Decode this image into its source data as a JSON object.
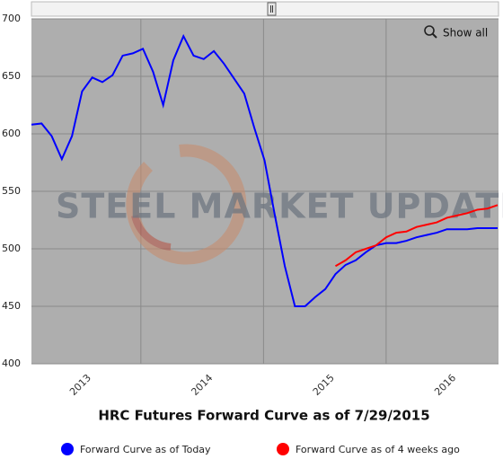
{
  "chart_data": {
    "type": "line",
    "title": "HRC Futures Forward Curve as of 7/29/2015",
    "watermark": "STEEL MARKET UPDATE",
    "button": "Show all",
    "categories": [
      null,
      null,
      null,
      null,
      null,
      null,
      null,
      null,
      null,
      null,
      null,
      null,
      null,
      null,
      null,
      null,
      null,
      null,
      null,
      null,
      null,
      null,
      null,
      null,
      null,
      null,
      null,
      null,
      null,
      null,
      null,
      null,
      null,
      null,
      null,
      null,
      null,
      null,
      null,
      null,
      null,
      null,
      null,
      null,
      null,
      null,
      null
    ],
    "series": [
      {
        "name": "Forward Curve as of Today",
        "color": "#0000ff",
        "values": [
          608,
          609,
          598,
          578,
          598,
          637,
          649,
          645,
          651,
          668,
          670,
          674,
          654,
          625,
          664,
          685,
          668,
          665,
          672,
          661,
          648,
          635,
          605,
          577,
          530,
          485,
          450,
          450,
          458,
          465,
          478,
          486,
          490,
          497,
          503,
          505,
          505,
          507,
          510,
          512,
          514,
          517,
          517,
          517,
          518,
          518,
          518
        ]
      },
      {
        "name": "Forward Curve as of 4 weeks ago",
        "color": "#ff0000",
        "values": [
          null,
          null,
          null,
          null,
          null,
          null,
          null,
          null,
          null,
          null,
          null,
          null,
          null,
          null,
          null,
          null,
          null,
          null,
          null,
          null,
          null,
          null,
          null,
          null,
          null,
          null,
          null,
          null,
          null,
          null,
          485,
          490,
          497,
          500,
          503,
          510,
          514,
          515,
          519,
          521,
          523,
          527,
          529,
          531,
          534,
          535,
          538
        ]
      }
    ],
    "xlim": [
      0,
      46
    ],
    "xticks": [
      {
        "value": 4.5,
        "label": "2013"
      },
      {
        "value": 16.5,
        "label": "2014"
      },
      {
        "value": 28.5,
        "label": "2015"
      },
      {
        "value": 40.5,
        "label": "2016"
      }
    ],
    "xgrid": [
      10.8,
      22.9,
      35
    ],
    "ylim": [
      400,
      700
    ],
    "yticks": [
      400,
      450,
      500,
      550,
      600,
      650,
      700
    ],
    "grid": true,
    "legend": "bottom"
  }
}
